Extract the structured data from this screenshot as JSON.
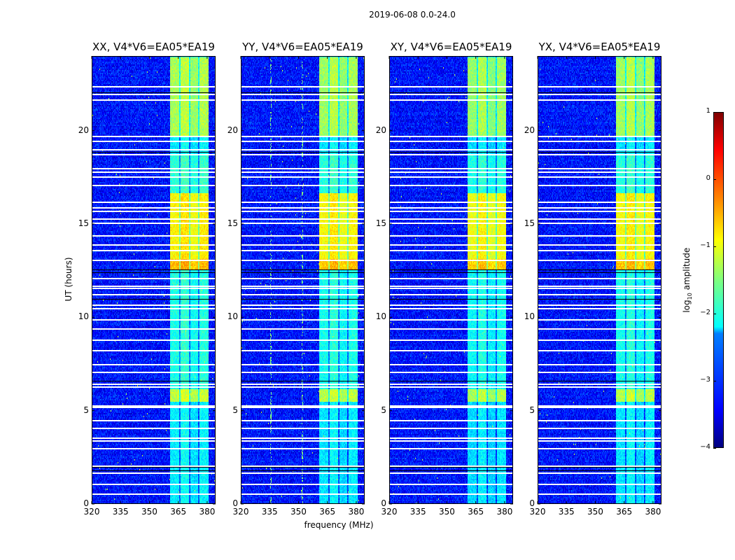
{
  "chart_data": {
    "type": "heatmap",
    "title": "2019-06-08 0.0-24.0",
    "panels": [
      {
        "title": "XX, V4*V6=EA05*EA19",
        "level_offset": 0.0,
        "vertical_rfi_mhz": []
      },
      {
        "title": "YY, V4*V6=EA05*EA19",
        "level_offset": -0.05,
        "vertical_rfi_mhz": [
          335.5,
          351.8
        ]
      },
      {
        "title": "XY, V4*V6=EA05*EA19",
        "level_offset": -0.1,
        "vertical_rfi_mhz": []
      },
      {
        "title": "YX, V4*V6=EA05*EA19",
        "level_offset": -0.05,
        "vertical_rfi_mhz": []
      }
    ],
    "xlabel": "frequency (MHz)",
    "ylabel": "UT (hours)",
    "xlim": [
      320,
      384.4
    ],
    "ylim": [
      0,
      24
    ],
    "xticks": [
      "320",
      "335",
      "350",
      "365",
      "380"
    ],
    "yticks": [
      "0",
      "5",
      "10",
      "15",
      "20"
    ],
    "colorbar": {
      "label_prefix": "log",
      "label_sub": "10",
      "label_suffix": " amplitude",
      "range": [
        -4,
        1
      ],
      "ticks": [
        "1",
        "0",
        "−1",
        "−2",
        "−3",
        "−4"
      ]
    },
    "background_level": -3.3,
    "rfi_band_mhz": [
      360.7,
      380.4
    ],
    "subband_gaps_mhz": [
      365.8,
      370.9,
      375.6
    ],
    "band_level_segments": [
      {
        "from": 0,
        "to": 5.5,
        "level": -2.2
      },
      {
        "from": 5.5,
        "to": 6.2,
        "level": -1.2
      },
      {
        "from": 6.2,
        "to": 12.6,
        "level": -2.0
      },
      {
        "from": 12.6,
        "to": 13.2,
        "level": -0.55
      },
      {
        "from": 13.2,
        "to": 16.7,
        "level": -0.85
      },
      {
        "from": 16.7,
        "to": 18.8,
        "level": -1.9
      },
      {
        "from": 18.8,
        "to": 19.7,
        "level": -2.2
      },
      {
        "from": 19.7,
        "to": 24,
        "level": -1.3
      }
    ],
    "flagged_hours": [
      22.4,
      21.97,
      21.67,
      19.72,
      19.46,
      19.01,
      18.75,
      18.0,
      17.8,
      17.55,
      17.1,
      16.2,
      15.9,
      15.7,
      15.3,
      15.07,
      14.4,
      13.9,
      13.6,
      13.1,
      12.1,
      11.7,
      11.6,
      11.25,
      10.7,
      10.5,
      9.9,
      9.4,
      8.8,
      8.25,
      7.5,
      7.1,
      6.45,
      6.3,
      5.3,
      5.2,
      4.5,
      4.1,
      3.55,
      3.4,
      3.0,
      2.05,
      1.7,
      1.1,
      0.55
    ],
    "black_hours": [
      22.05,
      18.85,
      12.55,
      12.4,
      11.0,
      6.6,
      2.0,
      1.8
    ]
  }
}
